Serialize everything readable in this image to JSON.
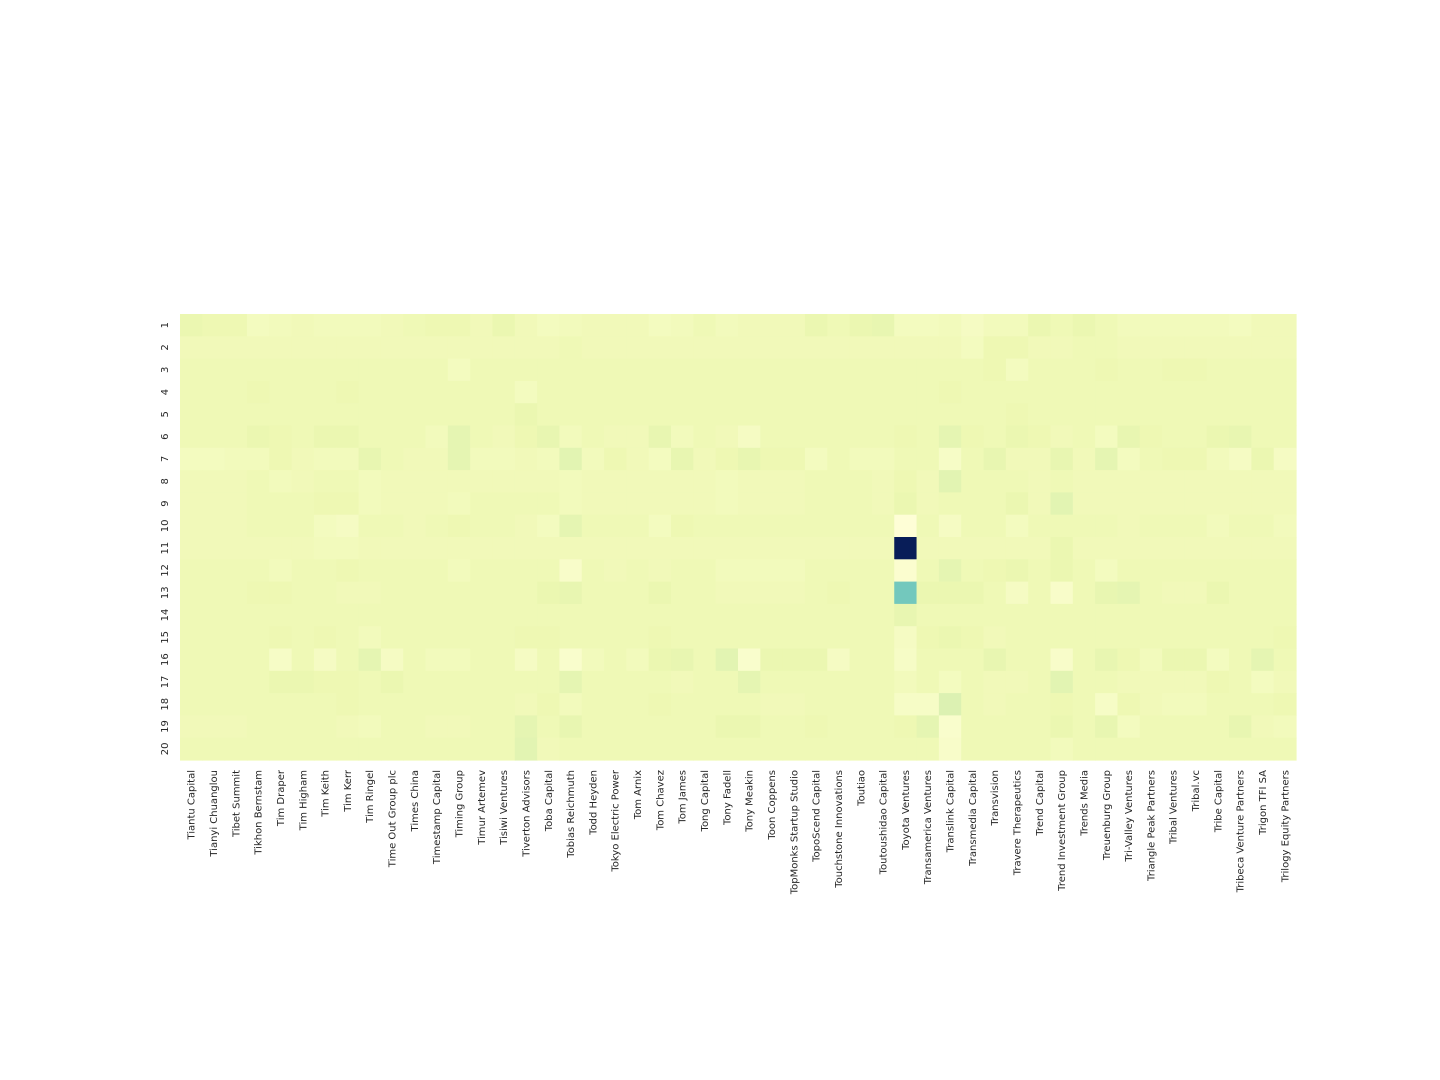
{
  "chart_data": {
    "type": "heatmap",
    "title": "",
    "xlabel": "",
    "ylabel": "",
    "colormap": "YlGnBu",
    "vmin": 0,
    "vmax": 100,
    "colorbar": false,
    "grid": false,
    "x_categories": [
      "Tiantu Capital",
      "Tianyi Chuanglou",
      "Tibet Summit",
      "Tikhon Bernstam",
      "Tim Draper",
      "Tim Higham",
      "Tim Keith",
      "Tim Kerr",
      "Tim Ringel",
      "Time Out Group plc",
      "Times China",
      "Timestamp Capital",
      "Timing Group",
      "Timur Artemev",
      "Tisiwi Ventures",
      "Tiverton Advisors",
      "Toba Capital",
      "Tobias Reichmuth",
      "Todd Heyden",
      "Tokyo Electric Power",
      "Tom Arnix",
      "Tom Chavez",
      "Tom James",
      "Tong Capital",
      "Tony Fadell",
      "Tony Meakin",
      "Toon Coppens",
      "TopMonks Startup Studio",
      "TopoScend Capital",
      "Touchstone Innovations",
      "Toutiao",
      "Toutoushidao Capital",
      "Toyota Ventures",
      "Transamerica Ventures",
      "Translink Capital",
      "Transmedia Capital",
      "Transvision",
      "Travere Therapeutics",
      "Trend Capital",
      "Trend Investment Group",
      "Trends Media",
      "Treuenburg Group",
      "Tri-Valley Ventures",
      "Triangle Peak Partners",
      "Tribal Ventures",
      "Tribal.vc",
      "Tribe Capital",
      "Tribeca Venture Partners",
      "Trigon TFI SA",
      "Trilogy Equity Partners"
    ],
    "y_categories": [
      "1",
      "2",
      "3",
      "4",
      "5",
      "6",
      "7",
      "8",
      "9",
      "10",
      "11",
      "12",
      "13",
      "14",
      "15",
      "16",
      "17",
      "18",
      "19",
      "20"
    ],
    "values": [
      [
        13,
        12,
        12,
        8,
        9,
        10,
        9,
        9,
        9,
        10,
        11,
        12,
        12,
        10,
        13,
        10,
        8,
        9,
        10,
        10,
        10,
        8,
        9,
        11,
        9,
        10,
        10,
        10,
        13,
        11,
        13,
        14,
        8,
        8,
        9,
        7,
        9,
        9,
        13,
        11,
        13,
        11,
        9,
        9,
        9,
        9,
        9,
        8,
        10,
        10
      ],
      [
        10,
        10,
        10,
        10,
        10,
        10,
        10,
        10,
        10,
        10,
        10,
        10,
        10,
        10,
        10,
        10,
        10,
        11,
        10,
        10,
        10,
        10,
        10,
        10,
        10,
        10,
        10,
        10,
        10,
        10,
        10,
        10,
        10,
        10,
        10,
        8,
        12,
        12,
        10,
        10,
        11,
        11,
        10,
        10,
        10,
        10,
        10,
        10,
        10,
        10
      ],
      [
        11,
        11,
        11,
        11,
        11,
        11,
        11,
        11,
        11,
        11,
        11,
        11,
        8,
        11,
        11,
        11,
        11,
        11,
        11,
        11,
        11,
        11,
        11,
        11,
        11,
        11,
        11,
        11,
        11,
        11,
        11,
        11,
        11,
        11,
        11,
        11,
        12,
        8,
        11,
        11,
        11,
        12,
        11,
        11,
        12,
        12,
        11,
        11,
        11,
        11
      ],
      [
        11,
        11,
        11,
        12,
        11,
        11,
        11,
        12,
        11,
        11,
        11,
        11,
        11,
        11,
        11,
        8,
        11,
        11,
        11,
        11,
        11,
        11,
        11,
        11,
        11,
        11,
        11,
        11,
        11,
        11,
        11,
        11,
        11,
        11,
        12,
        11,
        11,
        11,
        11,
        11,
        11,
        11,
        11,
        11,
        11,
        11,
        11,
        11,
        11,
        11
      ],
      [
        11,
        11,
        11,
        11,
        11,
        11,
        11,
        11,
        11,
        11,
        11,
        11,
        11,
        11,
        11,
        13,
        11,
        11,
        11,
        11,
        11,
        11,
        11,
        11,
        11,
        11,
        11,
        11,
        11,
        11,
        11,
        11,
        11,
        11,
        11,
        11,
        11,
        12,
        11,
        11,
        11,
        11,
        11,
        11,
        11,
        11,
        11,
        11,
        11,
        11
      ],
      [
        11,
        11,
        11,
        13,
        12,
        11,
        13,
        13,
        11,
        11,
        11,
        9,
        15,
        11,
        10,
        12,
        14,
        9,
        11,
        10,
        10,
        14,
        9,
        11,
        10,
        7,
        11,
        11,
        11,
        11,
        11,
        11,
        12,
        11,
        15,
        12,
        11,
        13,
        12,
        10,
        11,
        8,
        14,
        12,
        11,
        11,
        13,
        14,
        11,
        11
      ],
      [
        8,
        8,
        9,
        9,
        12,
        10,
        9,
        9,
        14,
        11,
        10,
        10,
        15,
        9,
        9,
        10,
        9,
        16,
        9,
        12,
        10,
        8,
        14,
        10,
        12,
        14,
        12,
        12,
        8,
        11,
        9,
        9,
        11,
        11,
        6,
        11,
        14,
        10,
        10,
        14,
        10,
        15,
        8,
        11,
        12,
        12,
        9,
        7,
        13,
        7
      ],
      [
        10,
        10,
        10,
        11,
        9,
        10,
        11,
        11,
        9,
        10,
        10,
        10,
        10,
        10,
        10,
        10,
        10,
        9,
        10,
        10,
        10,
        10,
        10,
        10,
        9,
        10,
        10,
        10,
        11,
        11,
        11,
        10,
        12,
        10,
        16,
        11,
        11,
        11,
        10,
        11,
        10,
        10,
        10,
        10,
        10,
        10,
        10,
        10,
        10,
        10
      ],
      [
        10,
        10,
        10,
        11,
        11,
        11,
        12,
        12,
        9,
        10,
        10,
        10,
        9,
        11,
        11,
        11,
        11,
        9,
        10,
        10,
        10,
        10,
        10,
        10,
        9,
        10,
        10,
        10,
        11,
        11,
        11,
        10,
        13,
        10,
        11,
        11,
        11,
        13,
        10,
        16,
        10,
        10,
        10,
        10,
        10,
        10,
        10,
        10,
        10,
        10
      ],
      [
        10,
        10,
        10,
        11,
        11,
        11,
        8,
        7,
        11,
        11,
        10,
        11,
        12,
        11,
        11,
        10,
        8,
        15,
        11,
        11,
        11,
        8,
        12,
        11,
        11,
        11,
        11,
        11,
        11,
        11,
        11,
        11,
        1,
        11,
        7,
        11,
        11,
        8,
        11,
        11,
        11,
        11,
        10,
        11,
        11,
        11,
        9,
        11,
        11,
        9
      ],
      [
        10,
        10,
        10,
        10,
        10,
        10,
        9,
        9,
        10,
        10,
        10,
        10,
        10,
        10,
        10,
        10,
        10,
        10,
        10,
        10,
        10,
        10,
        10,
        10,
        10,
        10,
        10,
        10,
        10,
        10,
        10,
        10,
        100,
        10,
        10,
        10,
        10,
        10,
        10,
        13,
        10,
        10,
        10,
        10,
        10,
        10,
        10,
        10,
        10,
        10
      ],
      [
        11,
        11,
        11,
        11,
        9,
        11,
        11,
        12,
        11,
        11,
        11,
        11,
        9,
        11,
        11,
        11,
        11,
        5,
        11,
        10,
        11,
        10,
        11,
        11,
        9,
        9,
        9,
        9,
        11,
        11,
        11,
        11,
        3,
        11,
        15,
        11,
        12,
        13,
        11,
        13,
        11,
        8,
        11,
        11,
        11,
        11,
        11,
        11,
        11,
        11
      ],
      [
        11,
        11,
        11,
        12,
        12,
        11,
        11,
        10,
        10,
        11,
        11,
        11,
        11,
        11,
        11,
        11,
        13,
        14,
        11,
        11,
        11,
        13,
        11,
        11,
        10,
        10,
        10,
        10,
        11,
        12,
        11,
        11,
        40,
        13,
        13,
        13,
        11,
        7,
        11,
        5,
        11,
        14,
        15,
        11,
        10,
        10,
        13,
        11,
        11,
        11
      ],
      [
        11,
        11,
        11,
        11,
        11,
        11,
        11,
        11,
        11,
        11,
        11,
        11,
        11,
        11,
        11,
        11,
        11,
        11,
        11,
        11,
        11,
        11,
        11,
        11,
        11,
        11,
        11,
        11,
        11,
        11,
        11,
        11,
        14,
        11,
        11,
        11,
        11,
        11,
        11,
        11,
        11,
        11,
        11,
        11,
        11,
        11,
        11,
        11,
        11,
        11
      ],
      [
        11,
        11,
        11,
        11,
        12,
        11,
        12,
        11,
        9,
        11,
        11,
        11,
        11,
        11,
        11,
        12,
        12,
        11,
        11,
        11,
        11,
        12,
        11,
        11,
        11,
        11,
        11,
        11,
        11,
        11,
        11,
        11,
        7,
        12,
        13,
        12,
        10,
        11,
        11,
        11,
        11,
        11,
        11,
        11,
        11,
        11,
        11,
        11,
        11,
        12
      ],
      [
        11,
        11,
        11,
        11,
        6,
        11,
        7,
        11,
        15,
        7,
        11,
        9,
        9,
        11,
        11,
        7,
        11,
        4,
        9,
        11,
        9,
        13,
        14,
        11,
        16,
        4,
        13,
        13,
        13,
        7,
        11,
        11,
        6,
        11,
        11,
        11,
        14,
        11,
        11,
        5,
        11,
        14,
        12,
        9,
        13,
        13,
        8,
        11,
        15,
        11
      ],
      [
        11,
        11,
        11,
        11,
        13,
        13,
        12,
        12,
        11,
        13,
        11,
        11,
        11,
        11,
        11,
        11,
        11,
        15,
        11,
        11,
        11,
        11,
        10,
        11,
        11,
        15,
        11,
        11,
        11,
        11,
        11,
        11,
        9,
        11,
        8,
        11,
        10,
        10,
        11,
        16,
        11,
        11,
        10,
        10,
        10,
        10,
        12,
        11,
        8,
        10
      ],
      [
        11,
        11,
        11,
        11,
        11,
        11,
        11,
        12,
        11,
        11,
        11,
        11,
        11,
        11,
        11,
        10,
        12,
        9,
        11,
        11,
        11,
        12,
        11,
        11,
        11,
        11,
        10,
        10,
        11,
        11,
        11,
        11,
        6,
        6,
        18,
        11,
        10,
        11,
        11,
        12,
        11,
        6,
        12,
        10,
        9,
        9,
        11,
        11,
        11,
        12
      ],
      [
        10,
        10,
        10,
        11,
        11,
        11,
        11,
        10,
        9,
        11,
        11,
        10,
        10,
        11,
        11,
        15,
        11,
        14,
        11,
        11,
        11,
        11,
        11,
        11,
        13,
        13,
        11,
        11,
        12,
        11,
        11,
        11,
        12,
        15,
        4,
        11,
        11,
        11,
        11,
        13,
        11,
        14,
        8,
        11,
        11,
        11,
        11,
        14,
        10,
        9
      ],
      [
        11,
        11,
        11,
        11,
        11,
        11,
        11,
        11,
        11,
        11,
        11,
        11,
        11,
        11,
        11,
        16,
        10,
        11,
        11,
        11,
        11,
        11,
        11,
        11,
        11,
        11,
        11,
        11,
        11,
        11,
        11,
        11,
        11,
        11,
        5,
        11,
        11,
        11,
        11,
        9,
        11,
        11,
        11,
        11,
        11,
        11,
        11,
        11,
        11,
        11
      ]
    ]
  }
}
